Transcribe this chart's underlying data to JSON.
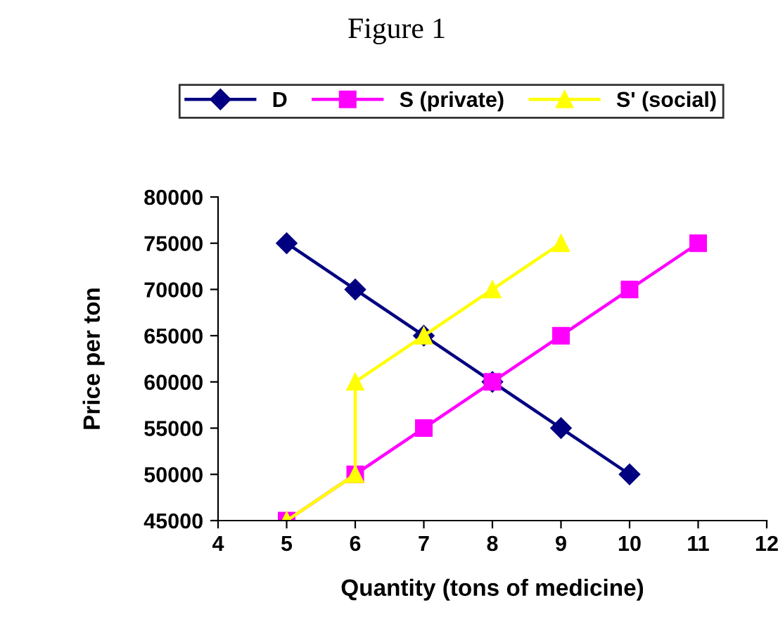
{
  "chart_data": {
    "type": "line",
    "title": "Figure 1",
    "xlabel": "Quantity (tons of medicine)",
    "ylabel": "Price per ton",
    "series": [
      {
        "name": "D",
        "color": "#000080",
        "marker": "diamond",
        "x": [
          5,
          6,
          7,
          8,
          9,
          10
        ],
        "values": [
          75000,
          70000,
          65000,
          60000,
          55000,
          50000
        ]
      },
      {
        "name": "S (private)",
        "color": "#ff00ff",
        "marker": "square",
        "x": [
          5,
          6,
          7,
          8,
          9,
          10,
          11
        ],
        "values": [
          45000,
          50000,
          55000,
          60000,
          65000,
          70000,
          75000
        ]
      },
      {
        "name": "S' (social)",
        "color": "#ffff00",
        "marker": "triangle",
        "x": [
          5,
          6,
          6,
          7,
          8,
          9
        ],
        "values": [
          45000,
          50000,
          60000,
          65000,
          70000,
          75000
        ]
      }
    ],
    "xlim": [
      4,
      12
    ],
    "xticks": [
      4,
      5,
      6,
      7,
      8,
      9,
      10,
      11,
      12
    ],
    "ylim": [
      45000,
      80000
    ],
    "yticks": [
      45000,
      50000,
      55000,
      60000,
      65000,
      70000,
      75000,
      80000
    ],
    "grid": false,
    "legend": "top",
    "line_style": "solid"
  }
}
